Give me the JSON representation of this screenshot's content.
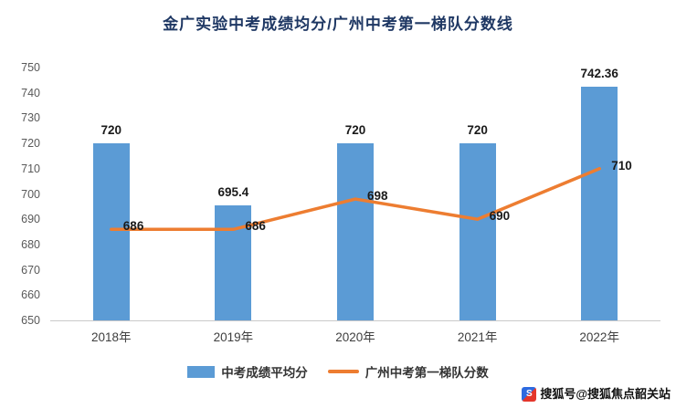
{
  "chart_data": {
    "type": "bar+line",
    "title": "金广实验中考成绩均分/广州中考第一梯队分数线",
    "categories": [
      "2018年",
      "2019年",
      "2020年",
      "2021年",
      "2022年"
    ],
    "series": [
      {
        "name": "中考成绩平均分",
        "type": "bar",
        "color": "#5B9BD5",
        "values": [
          720,
          695.4,
          720,
          720,
          742.36
        ],
        "labels": [
          "720",
          "695.4",
          "720",
          "720",
          "742.36"
        ]
      },
      {
        "name": "广州中考第一梯队分数",
        "type": "line",
        "color": "#ED7D31",
        "values": [
          686,
          686,
          698,
          690,
          710
        ],
        "labels": [
          "686",
          "686",
          "698",
          "690",
          "710"
        ]
      }
    ],
    "ylim": [
      650,
      750
    ],
    "yticks": [
      750,
      740,
      730,
      720,
      710,
      700,
      690,
      680,
      670,
      660,
      650
    ],
    "grid": false,
    "legend_position": "bottom"
  },
  "watermark": {
    "icon_glyph": "S",
    "text": "搜狐号@搜狐焦点韶关站"
  }
}
